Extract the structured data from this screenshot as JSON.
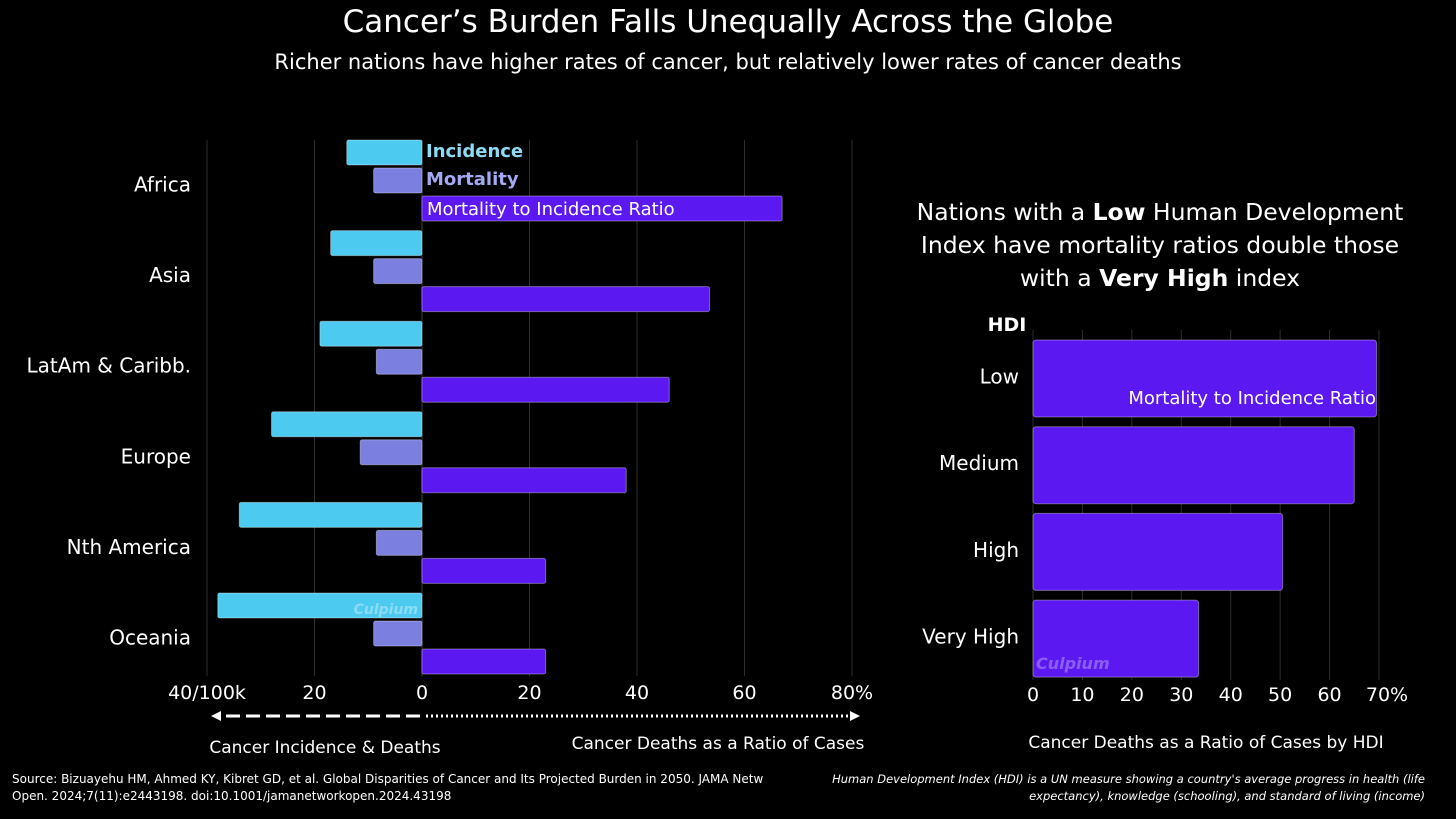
{
  "title": "Cancer’s Burden Falls Unequally Across the Globe",
  "subtitle": "Richer nations have higher rates of cancer, but relatively lower rates of cancer deaths",
  "headline": {
    "pre": "Nations with a ",
    "bold1": "Low",
    "mid": " Human Development Index have mortality ratios double those with a ",
    "bold2": "Very High",
    "post": " index"
  },
  "source": "Source: Bizuayehu HM, Ahmed KY, Kibret GD, et al. Global Disparities of Cancer and Its Projected Burden in 2050. JAMA Netw Open. 2024;7(11):e2443198. doi:10.1001/jamanetworkopen.2024.43198",
  "hdi_note": "Human Development Index (HDI) is a UN measure showing a country's average progress in health (life expectancy), knowledge (schooling), and standard of living (income)",
  "watermark": "Culpium",
  "colors": {
    "incidence": "#4dcaef",
    "mortality": "#7b7fe0",
    "ratio": "#5b18f0",
    "grid": "#2e2e2e"
  },
  "chart_data": [
    {
      "type": "bar",
      "orientation": "horizontal",
      "categories": [
        "Africa",
        "Asia",
        "LatAm & Caribb.",
        "Europe",
        "Nth America",
        "Oceania"
      ],
      "series": [
        {
          "name": "Incidence",
          "unit": "per 100k",
          "direction": "left",
          "values": [
            14,
            17,
            19,
            28,
            34,
            38
          ]
        },
        {
          "name": "Mortality",
          "unit": "per 100k",
          "direction": "left",
          "values": [
            9,
            9,
            8.5,
            11.5,
            8.5,
            9
          ]
        },
        {
          "name": "Mortality to Incidence Ratio",
          "unit": "%",
          "direction": "right",
          "values": [
            67,
            53.5,
            46,
            38,
            23,
            23
          ]
        }
      ],
      "left_axis": {
        "ticks": [
          "40/100k",
          "20",
          "0"
        ],
        "range": [
          40,
          0
        ],
        "label": "Cancer Incidence & Deaths"
      },
      "right_axis": {
        "ticks": [
          "20",
          "40",
          "60",
          "80%"
        ],
        "range": [
          0,
          80
        ],
        "label": "Cancer Deaths as a Ratio of Cases"
      },
      "grid": true
    },
    {
      "type": "bar",
      "orientation": "horizontal",
      "group_title": "HDI",
      "categories": [
        "Low",
        "Medium",
        "High",
        "Very High"
      ],
      "series": [
        {
          "name": "Mortality to Incidence Ratio",
          "values": [
            69.5,
            65,
            50.5,
            33.5
          ]
        }
      ],
      "xlim": [
        0,
        70
      ],
      "xticks": [
        "0",
        "10",
        "20",
        "30",
        "40",
        "50",
        "60",
        "70%"
      ],
      "xlabel": "Cancer Deaths as a Ratio of Cases by HDI",
      "grid": true
    }
  ]
}
